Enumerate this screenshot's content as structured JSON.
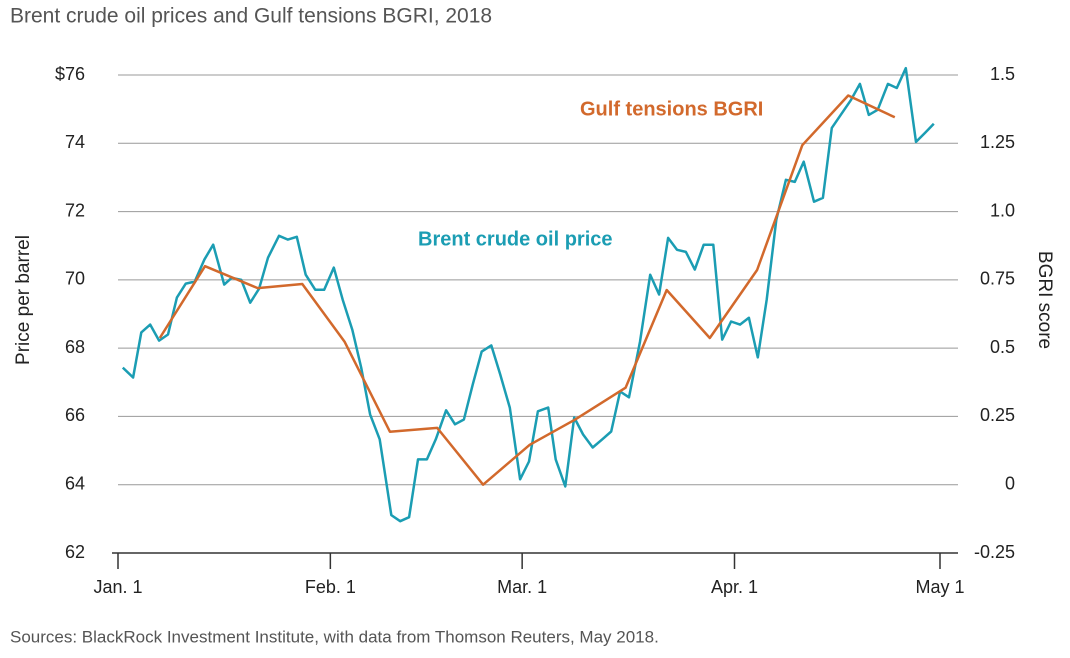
{
  "chart_data": {
    "type": "line",
    "title": "Brent crude oil prices and Gulf tensions BGRI, 2018",
    "source": "Sources: BlackRock Investment Institute, with data from Thomson Reuters, May 2018.",
    "ylabel": "Price per barrel",
    "y2label": "BGRI score",
    "annotations": [
      "Gulf tensions BGRI",
      "Brent crude oil price"
    ],
    "xlim": [
      0,
      120
    ],
    "xticks": [
      {
        "value": 0,
        "label": "Jan. 1"
      },
      {
        "value": 31,
        "label": "Feb. 1"
      },
      {
        "value": 59,
        "label": "Mar. 1"
      },
      {
        "value": 90,
        "label": "Apr. 1"
      },
      {
        "value": 120,
        "label": "May 1"
      }
    ],
    "ylim": [
      62,
      76
    ],
    "yticks": [
      62,
      64,
      66,
      68,
      70,
      72,
      74,
      {
        "value": 76,
        "label": "$76"
      }
    ],
    "y2lim": [
      -0.25,
      1.5
    ],
    "y2ticks": [
      -0.25,
      0,
      0.25,
      0.5,
      0.75,
      {
        "value": 1,
        "label": "1.0"
      },
      1.25,
      1.5
    ],
    "grid": true,
    "series": [
      {
        "name": "Brent crude oil price",
        "color": "#1b9db3",
        "x": [
          0.7,
          2.2,
          3.4,
          4.7,
          6,
          7.3,
          8.6,
          9.9,
          11.2,
          12.6,
          13.9,
          15.5,
          16.6,
          18,
          19.3,
          20.6,
          21.9,
          23.5,
          24.8,
          26.1,
          27.4,
          28.8,
          30.1,
          31.5,
          32.8,
          34.2,
          35.5,
          36.8,
          38.2,
          39.9,
          41.2,
          42.5,
          43.8,
          45.1,
          46.4,
          47.9,
          49.2,
          50.5,
          51.8,
          53.1,
          54.5,
          55.8,
          57.2,
          58.7,
          60,
          61.3,
          62.8,
          63.9,
          65.3,
          66.6,
          67.9,
          69.3,
          70.7,
          72,
          73.3,
          74.6,
          76.2,
          77.7,
          79,
          80.3,
          81.6,
          82.9,
          84.2,
          85.5,
          86.9,
          88.2,
          89.5,
          90.8,
          92.1,
          93.4,
          94.7,
          96.1,
          97.5,
          98.8,
          100.1,
          101.6,
          102.9,
          104.2,
          105.5,
          107,
          108.3,
          109.6,
          110.9,
          112.4,
          113.7,
          115,
          116.5,
          117.8,
          119.1
        ],
        "values": [
          67.43,
          67.14,
          68.46,
          68.69,
          68.22,
          68.4,
          69.48,
          69.89,
          69.95,
          70.59,
          71.03,
          69.86,
          70.06,
          70,
          69.33,
          69.74,
          70.65,
          71.29,
          71.18,
          71.26,
          70.15,
          69.71,
          69.71,
          70.36,
          69.42,
          68.54,
          67.43,
          66.06,
          65.33,
          63.11,
          62.93,
          63.05,
          64.74,
          64.74,
          65.33,
          66.18,
          65.77,
          65.91,
          66.94,
          67.9,
          68.08,
          67.23,
          66.26,
          64.16,
          64.68,
          66.15,
          66.26,
          64.74,
          63.95,
          65.97,
          65.47,
          65.09,
          65.33,
          65.56,
          66.73,
          66.56,
          68.19,
          70.15,
          69.57,
          71.23,
          70.88,
          70.82,
          70.3,
          71.03,
          71.03,
          68.25,
          68.78,
          68.69,
          68.89,
          67.73,
          69.42,
          71.76,
          72.93,
          72.87,
          73.46,
          72.29,
          72.4,
          74.45,
          74.83,
          75.27,
          75.74,
          74.83,
          74.98,
          75.74,
          75.62,
          76.2,
          74.04,
          74.3,
          74.57
        ]
      },
      {
        "name": "Gulf tensions BGRI",
        "color": "#d2692c",
        "axis": "y2",
        "x": [
          6.1,
          12.7,
          20.4,
          26.9,
          33.1,
          39.7,
          46.6,
          53.3,
          60.1,
          66.7,
          74.1,
          80.1,
          86.4,
          93.3,
          99.9,
          106.6,
          113.4
        ],
        "values": [
          0.537,
          0.8,
          0.72,
          0.735,
          0.523,
          0.194,
          0.208,
          0,
          0.146,
          0.238,
          0.355,
          0.713,
          0.537,
          0.786,
          1.243,
          1.425,
          1.345
        ]
      }
    ]
  }
}
